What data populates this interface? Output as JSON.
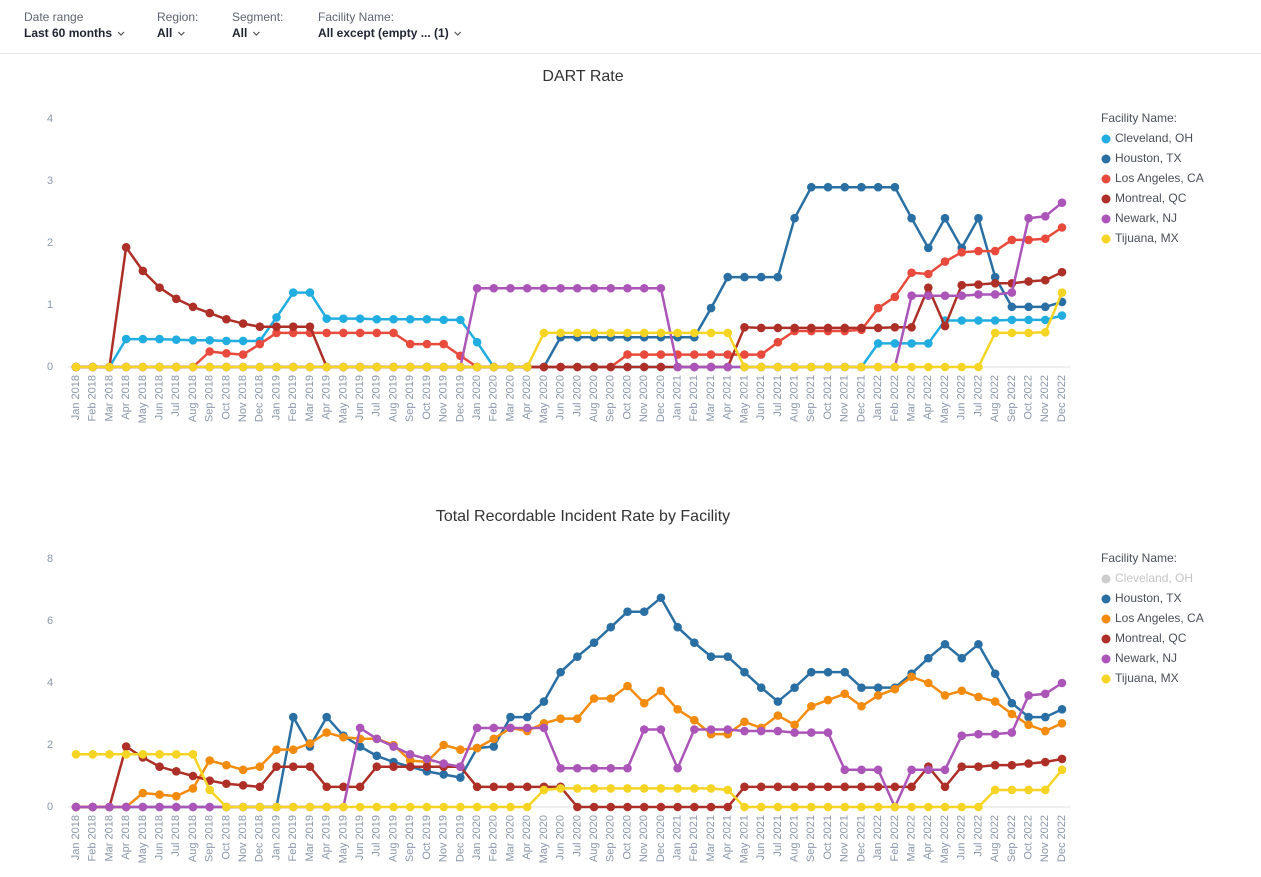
{
  "filters": [
    {
      "label": "Date range",
      "value": "Last 60 months"
    },
    {
      "label": "Region:",
      "value": "All"
    },
    {
      "label": "Segment:",
      "value": "All"
    },
    {
      "label": "Facility Name:",
      "value": "All except (empty ... (1)"
    }
  ],
  "chart_data": [
    {
      "type": "line",
      "title": "DART Rate",
      "legend_title": "Facility Name:",
      "legend": "right",
      "grid": false,
      "ylim": [
        0,
        4
      ],
      "yticks": [
        0,
        1,
        2,
        3,
        4
      ],
      "categories": [
        "Jan 2018",
        "Feb 2018",
        "Mar 2018",
        "Apr 2018",
        "May 2018",
        "Jun 2018",
        "Jul 2018",
        "Aug 2018",
        "Sep 2018",
        "Oct 2018",
        "Nov 2018",
        "Dec 2018",
        "Jan 2019",
        "Feb 2019",
        "Mar 2019",
        "Apr 2019",
        "May 2019",
        "Jun 2019",
        "Jul 2019",
        "Aug 2019",
        "Sep 2019",
        "Oct 2019",
        "Nov 2019",
        "Dec 2019",
        "Jan 2020",
        "Feb 2020",
        "Mar 2020",
        "Apr 2020",
        "May 2020",
        "Jun 2020",
        "Jul 2020",
        "Aug 2020",
        "Sep 2020",
        "Oct 2020",
        "Nov 2020",
        "Dec 2020",
        "Jan 2021",
        "Feb 2021",
        "Mar 2021",
        "Apr 2021",
        "May 2021",
        "Jun 2021",
        "Jul 2021",
        "Aug 2021",
        "Sep 2021",
        "Oct 2021",
        "Nov 2021",
        "Dec 2021",
        "Jan 2022",
        "Feb 2022",
        "Mar 2022",
        "Apr 2022",
        "May 2022",
        "Jun 2022",
        "Jul 2022",
        "Aug 2022",
        "Sep 2022",
        "Oct 2022",
        "Nov 2022",
        "Dec 2022"
      ],
      "series": [
        {
          "name": "Cleveland, OH",
          "color": "#22ade1",
          "visible": true,
          "values": [
            0,
            0,
            0,
            0.45,
            0.45,
            0.45,
            0.44,
            0.43,
            0.43,
            0.42,
            0.42,
            0.42,
            0.8,
            1.2,
            1.2,
            0.78,
            0.78,
            0.78,
            0.77,
            0.77,
            0.77,
            0.77,
            0.76,
            0.76,
            0.4,
            0,
            0,
            0,
            0,
            0,
            0,
            0,
            0,
            0,
            0,
            0,
            0,
            0,
            0,
            0,
            0,
            0,
            0,
            0,
            0,
            0,
            0,
            0,
            0.38,
            0.38,
            0.38,
            0.38,
            0.75,
            0.75,
            0.75,
            0.75,
            0.76,
            0.76,
            0.76,
            0.83
          ]
        },
        {
          "name": "Houston, TX",
          "color": "#2a6fa3",
          "visible": true,
          "values": [
            0,
            0,
            0,
            0,
            0,
            0,
            0,
            0,
            0,
            0,
            0,
            0,
            0,
            0,
            0,
            0,
            0,
            0,
            0,
            0,
            0,
            0,
            0,
            0,
            0,
            0,
            0,
            0,
            0,
            0.48,
            0.48,
            0.48,
            0.48,
            0.48,
            0.48,
            0.48,
            0.48,
            0.48,
            0.95,
            1.45,
            1.45,
            1.45,
            1.45,
            2.4,
            2.9,
            2.9,
            2.9,
            2.9,
            2.9,
            2.9,
            2.4,
            1.92,
            2.4,
            1.92,
            2.4,
            1.45,
            0.97,
            0.97,
            0.97,
            1.05
          ]
        },
        {
          "name": "Los Angeles, CA",
          "color": "#e84b3d",
          "visible": true,
          "values": [
            0,
            0,
            0,
            0,
            0,
            0,
            0,
            0,
            0.25,
            0.22,
            0.2,
            0.37,
            0.55,
            0.55,
            0.55,
            0.55,
            0.55,
            0.55,
            0.55,
            0.55,
            0.37,
            0.37,
            0.37,
            0.18,
            0,
            0,
            0,
            0,
            0,
            0,
            0,
            0,
            0,
            0.2,
            0.2,
            0.2,
            0.2,
            0.2,
            0.2,
            0.2,
            0.2,
            0.2,
            0.4,
            0.58,
            0.58,
            0.58,
            0.58,
            0.6,
            0.95,
            1.13,
            1.52,
            1.5,
            1.7,
            1.85,
            1.87,
            1.87,
            2.05,
            2.05,
            2.07,
            2.25
          ]
        },
        {
          "name": "Montreal, QC",
          "color": "#ad2f27",
          "visible": true,
          "values": [
            0,
            0,
            0,
            1.93,
            1.55,
            1.28,
            1.1,
            0.97,
            0.87,
            0.77,
            0.7,
            0.65,
            0.65,
            0.65,
            0.65,
            0,
            0,
            0,
            0,
            0,
            0,
            0,
            0,
            0,
            0,
            0,
            0,
            0,
            0,
            0,
            0,
            0,
            0,
            0,
            0,
            0,
            0,
            0,
            0,
            0,
            0.64,
            0.63,
            0.63,
            0.63,
            0.63,
            0.63,
            0.63,
            0.63,
            0.63,
            0.64,
            0.64,
            1.28,
            0.66,
            1.32,
            1.33,
            1.35,
            1.35,
            1.38,
            1.4,
            1.53
          ]
        },
        {
          "name": "Newark, NJ",
          "color": "#ab55b8",
          "visible": true,
          "values": [
            0,
            0,
            0,
            0,
            0,
            0,
            0,
            0,
            0,
            0,
            0,
            0,
            0,
            0,
            0,
            0,
            0,
            0,
            0,
            0,
            0,
            0,
            0,
            0,
            1.27,
            1.27,
            1.27,
            1.27,
            1.27,
            1.27,
            1.27,
            1.27,
            1.27,
            1.27,
            1.27,
            1.27,
            0,
            0,
            0,
            0,
            0,
            0,
            0,
            0,
            0,
            0,
            0,
            0,
            0,
            0,
            1.15,
            1.15,
            1.15,
            1.15,
            1.17,
            1.17,
            1.2,
            2.4,
            2.43,
            2.65
          ]
        },
        {
          "name": "Tijuana, MX",
          "color": "#f5d423",
          "visible": true,
          "values": [
            0,
            0,
            0,
            0,
            0,
            0,
            0,
            0,
            0,
            0,
            0,
            0,
            0,
            0,
            0,
            0,
            0,
            0,
            0,
            0,
            0,
            0,
            0,
            0,
            0,
            0,
            0,
            0,
            0.55,
            0.55,
            0.55,
            0.55,
            0.55,
            0.55,
            0.55,
            0.55,
            0.55,
            0.55,
            0.55,
            0.55,
            0,
            0,
            0,
            0,
            0,
            0,
            0,
            0,
            0,
            0,
            0,
            0,
            0,
            0,
            0,
            0.55,
            0.55,
            0.55,
            0.56,
            1.2
          ]
        }
      ]
    },
    {
      "type": "line",
      "title": "Total Recordable Incident Rate by Facility",
      "legend_title": "Facility Name:",
      "legend": "right",
      "grid": false,
      "ylim": [
        0,
        8
      ],
      "yticks": [
        0,
        2,
        4,
        6,
        8
      ],
      "categories": [
        "Jan 2018",
        "Feb 2018",
        "Mar 2018",
        "Apr 2018",
        "May 2018",
        "Jun 2018",
        "Jul 2018",
        "Aug 2018",
        "Sep 2018",
        "Oct 2018",
        "Nov 2018",
        "Dec 2018",
        "Jan 2019",
        "Feb 2019",
        "Mar 2019",
        "Apr 2019",
        "May 2019",
        "Jun 2019",
        "Jul 2019",
        "Aug 2019",
        "Sep 2019",
        "Oct 2019",
        "Nov 2019",
        "Dec 2019",
        "Jan 2020",
        "Feb 2020",
        "Mar 2020",
        "Apr 2020",
        "May 2020",
        "Jun 2020",
        "Jul 2020",
        "Aug 2020",
        "Sep 2020",
        "Oct 2020",
        "Nov 2020",
        "Dec 2020",
        "Jan 2021",
        "Feb 2021",
        "Mar 2021",
        "Apr 2021",
        "May 2021",
        "Jun 2021",
        "Jul 2021",
        "Aug 2021",
        "Sep 2021",
        "Oct 2021",
        "Nov 2021",
        "Dec 2021",
        "Jan 2022",
        "Feb 2022",
        "Mar 2022",
        "Apr 2022",
        "May 2022",
        "Jun 2022",
        "Jul 2022",
        "Aug 2022",
        "Sep 2022",
        "Oct 2022",
        "Nov 2022",
        "Dec 2022"
      ],
      "series": [
        {
          "name": "Cleveland, OH",
          "color": "#cccccc",
          "visible": false,
          "values": [
            null,
            null,
            null,
            null,
            null,
            null,
            null,
            null,
            null,
            null,
            null,
            null,
            null,
            null,
            null,
            null,
            null,
            null,
            null,
            null,
            null,
            null,
            null,
            null,
            null,
            null,
            null,
            null,
            null,
            null,
            null,
            null,
            null,
            null,
            null,
            null,
            null,
            null,
            null,
            null,
            null,
            null,
            null,
            null,
            null,
            null,
            null,
            null,
            null,
            null,
            null,
            null,
            null,
            null,
            null,
            null,
            null,
            null,
            null,
            null
          ]
        },
        {
          "name": "Houston, TX",
          "color": "#2a6fa3",
          "visible": true,
          "values": [
            0,
            0,
            0,
            0,
            0,
            0,
            0,
            0,
            0,
            0,
            0,
            0,
            0,
            2.9,
            1.95,
            2.9,
            2.3,
            1.95,
            1.65,
            1.45,
            1.3,
            1.15,
            1.05,
            0.95,
            1.9,
            1.95,
            2.9,
            2.9,
            3.4,
            4.35,
            4.85,
            5.3,
            5.8,
            6.3,
            6.3,
            6.75,
            5.8,
            5.3,
            4.85,
            4.85,
            4.35,
            3.85,
            3.4,
            3.85,
            4.35,
            4.35,
            4.35,
            3.85,
            3.85,
            3.85,
            4.3,
            4.8,
            5.25,
            4.8,
            5.25,
            4.3,
            3.35,
            2.9,
            2.9,
            3.15
          ]
        },
        {
          "name": "Los Angeles, CA",
          "color": "#f38b0e",
          "visible": true,
          "values": [
            0,
            0,
            0,
            0,
            0.45,
            0.4,
            0.35,
            0.6,
            1.5,
            1.35,
            1.2,
            1.3,
            1.85,
            1.85,
            2.05,
            2.4,
            2.25,
            2.2,
            2.2,
            2.0,
            1.5,
            1.45,
            2.0,
            1.85,
            1.9,
            2.2,
            2.55,
            2.45,
            2.7,
            2.85,
            2.85,
            3.5,
            3.5,
            3.9,
            3.35,
            3.75,
            3.15,
            2.8,
            2.35,
            2.35,
            2.75,
            2.55,
            2.95,
            2.65,
            3.25,
            3.45,
            3.65,
            3.25,
            3.6,
            3.8,
            4.2,
            4.0,
            3.6,
            3.75,
            3.55,
            3.4,
            3.0,
            2.65,
            2.45,
            2.7
          ]
        },
        {
          "name": "Montreal, QC",
          "color": "#ad2f27",
          "visible": true,
          "values": [
            0,
            0,
            0,
            1.95,
            1.6,
            1.3,
            1.15,
            1.0,
            0.85,
            0.75,
            0.7,
            0.65,
            1.3,
            1.3,
            1.3,
            0.65,
            0.65,
            0.65,
            1.3,
            1.3,
            1.3,
            1.3,
            1.3,
            1.3,
            0.65,
            0.65,
            0.65,
            0.65,
            0.65,
            0.65,
            0,
            0,
            0,
            0,
            0,
            0,
            0,
            0,
            0,
            0,
            0.65,
            0.65,
            0.65,
            0.65,
            0.65,
            0.65,
            0.65,
            0.65,
            0.65,
            0.65,
            0.65,
            1.3,
            0.65,
            1.3,
            1.3,
            1.35,
            1.35,
            1.4,
            1.45,
            1.55
          ]
        },
        {
          "name": "Newark, NJ",
          "color": "#ab55b8",
          "visible": true,
          "values": [
            0,
            0,
            0,
            0,
            0,
            0,
            0,
            0,
            0,
            0,
            0,
            0,
            0,
            0,
            0,
            0,
            0,
            2.55,
            2.2,
            1.95,
            1.7,
            1.55,
            1.4,
            1.3,
            2.55,
            2.55,
            2.55,
            2.55,
            2.55,
            1.25,
            1.25,
            1.25,
            1.25,
            1.25,
            2.5,
            2.5,
            1.25,
            2.5,
            2.5,
            2.5,
            2.45,
            2.45,
            2.45,
            2.4,
            2.4,
            2.4,
            1.2,
            1.2,
            1.2,
            0,
            1.2,
            1.2,
            1.2,
            2.3,
            2.35,
            2.35,
            2.4,
            3.6,
            3.65,
            4.0
          ]
        },
        {
          "name": "Tijuana, MX",
          "color": "#f5d423",
          "visible": true,
          "values": [
            1.7,
            1.7,
            1.7,
            1.7,
            1.7,
            1.7,
            1.7,
            1.7,
            0.55,
            0,
            0,
            0,
            0,
            0,
            0,
            0,
            0,
            0,
            0,
            0,
            0,
            0,
            0,
            0,
            0,
            0,
            0,
            0,
            0.55,
            0.6,
            0.6,
            0.6,
            0.6,
            0.6,
            0.6,
            0.6,
            0.6,
            0.6,
            0.6,
            0.55,
            0,
            0,
            0,
            0,
            0,
            0,
            0,
            0,
            0,
            0,
            0,
            0,
            0,
            0,
            0,
            0.55,
            0.55,
            0.55,
            0.55,
            1.2
          ]
        }
      ]
    }
  ]
}
